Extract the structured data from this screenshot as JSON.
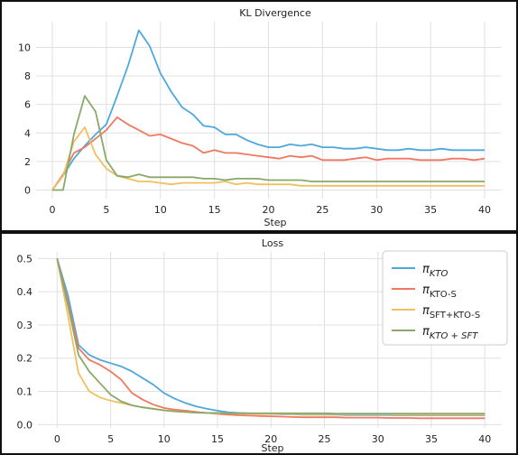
{
  "chart_data": [
    {
      "type": "line",
      "title": "KL Divergence",
      "xlabel": "Step",
      "ylabel": "",
      "xlim": [
        -1.5,
        41.5
      ],
      "ylim": [
        -0.6,
        11.8
      ],
      "xticks": [
        0,
        5,
        10,
        15,
        20,
        25,
        30,
        35,
        40
      ],
      "yticks": [
        0,
        2,
        4,
        6,
        8,
        10
      ],
      "grid": true,
      "x": [
        0,
        1,
        2,
        3,
        4,
        5,
        6,
        7,
        8,
        9,
        10,
        11,
        12,
        13,
        14,
        15,
        16,
        17,
        18,
        19,
        20,
        21,
        22,
        23,
        24,
        25,
        26,
        27,
        28,
        29,
        30,
        31,
        32,
        33,
        34,
        35,
        36,
        37,
        38,
        39,
        40
      ],
      "series": [
        {
          "color": "#4fa8dc",
          "values": [
            0,
            1.0,
            2.2,
            3.1,
            3.9,
            4.6,
            6.6,
            8.7,
            11.2,
            10.1,
            8.2,
            6.9,
            5.8,
            5.3,
            4.5,
            4.4,
            3.9,
            3.9,
            3.5,
            3.2,
            3.0,
            3.0,
            3.2,
            3.1,
            3.2,
            3.0,
            3.0,
            2.9,
            2.9,
            3.0,
            2.9,
            2.8,
            2.8,
            2.9,
            2.8,
            2.8,
            2.9,
            2.8,
            2.8,
            2.8,
            2.8
          ]
        },
        {
          "color": "#f07860",
          "values": [
            0,
            1.1,
            2.6,
            3.0,
            3.6,
            4.2,
            5.1,
            4.6,
            4.2,
            3.8,
            3.9,
            3.6,
            3.3,
            3.1,
            2.6,
            2.8,
            2.6,
            2.6,
            2.5,
            2.4,
            2.3,
            2.2,
            2.4,
            2.3,
            2.4,
            2.1,
            2.1,
            2.1,
            2.2,
            2.3,
            2.1,
            2.2,
            2.2,
            2.2,
            2.1,
            2.1,
            2.1,
            2.2,
            2.2,
            2.1,
            2.2
          ]
        },
        {
          "color": "#f0c060",
          "values": [
            0,
            1.0,
            3.4,
            4.4,
            2.5,
            1.5,
            1.0,
            0.8,
            0.6,
            0.6,
            0.5,
            0.4,
            0.5,
            0.5,
            0.5,
            0.5,
            0.6,
            0.4,
            0.5,
            0.4,
            0.4,
            0.4,
            0.4,
            0.3,
            0.3,
            0.3,
            0.3,
            0.3,
            0.3,
            0.3,
            0.3,
            0.3,
            0.3,
            0.3,
            0.3,
            0.3,
            0.3,
            0.3,
            0.3,
            0.3,
            0.3
          ]
        },
        {
          "color": "#8aa86a",
          "values": [
            0,
            0,
            3.9,
            6.6,
            5.5,
            2.1,
            1.0,
            0.9,
            1.1,
            0.9,
            0.9,
            0.9,
            0.9,
            0.9,
            0.8,
            0.8,
            0.7,
            0.8,
            0.8,
            0.8,
            0.7,
            0.7,
            0.7,
            0.7,
            0.6,
            0.6,
            0.6,
            0.6,
            0.6,
            0.6,
            0.6,
            0.6,
            0.6,
            0.6,
            0.6,
            0.6,
            0.6,
            0.6,
            0.6,
            0.6,
            0.6
          ]
        }
      ]
    },
    {
      "type": "line",
      "title": "Loss",
      "xlabel": "Step",
      "ylabel": "",
      "xlim": [
        -1.8,
        41.5
      ],
      "ylim": [
        -0.01,
        0.52
      ],
      "xticks": [
        0,
        5,
        10,
        15,
        20,
        25,
        30,
        35,
        40
      ],
      "yticks": [
        0.0,
        0.1,
        0.2,
        0.3,
        0.4,
        0.5
      ],
      "ytick_labels": [
        "0.0",
        "0.1",
        "0.2",
        "0.3",
        "0.4",
        "0.5"
      ],
      "grid": true,
      "legend_position": "top-right",
      "x": [
        0,
        1,
        2,
        3,
        4,
        5,
        6,
        7,
        8,
        9,
        10,
        11,
        12,
        13,
        14,
        15,
        16,
        17,
        18,
        19,
        20,
        21,
        22,
        23,
        24,
        25,
        26,
        27,
        28,
        29,
        30,
        31,
        32,
        33,
        34,
        35,
        36,
        37,
        38,
        39,
        40
      ],
      "series": [
        {
          "name": "π",
          "sub": "KTO",
          "sub_style": "italic",
          "color": "#4fa8dc",
          "values": [
            0.5,
            0.39,
            0.24,
            0.21,
            0.195,
            0.185,
            0.175,
            0.16,
            0.14,
            0.12,
            0.095,
            0.078,
            0.065,
            0.055,
            0.048,
            0.042,
            0.037,
            0.035,
            0.034,
            0.033,
            0.032,
            0.031,
            0.031,
            0.03,
            0.03,
            0.03,
            0.03,
            0.029,
            0.029,
            0.029,
            0.029,
            0.029,
            0.028,
            0.028,
            0.028,
            0.028,
            0.028,
            0.028,
            0.028,
            0.028,
            0.028
          ]
        },
        {
          "name": "π",
          "sub": "KTO-S",
          "sub_style": "normal",
          "color": "#f07860",
          "values": [
            0.5,
            0.37,
            0.23,
            0.195,
            0.18,
            0.16,
            0.135,
            0.095,
            0.075,
            0.06,
            0.05,
            0.045,
            0.042,
            0.038,
            0.035,
            0.032,
            0.03,
            0.028,
            0.027,
            0.026,
            0.025,
            0.024,
            0.023,
            0.022,
            0.022,
            0.022,
            0.022,
            0.021,
            0.021,
            0.021,
            0.021,
            0.02,
            0.02,
            0.02,
            0.019,
            0.019,
            0.019,
            0.019,
            0.019,
            0.019,
            0.019
          ]
        },
        {
          "name": "π",
          "sub": "SFT+KTO-S",
          "sub_style": "normal",
          "color": "#f0c060",
          "values": [
            0.5,
            0.33,
            0.155,
            0.1,
            0.082,
            0.072,
            0.065,
            0.058,
            0.052,
            0.048,
            0.043,
            0.04,
            0.038,
            0.036,
            0.035,
            0.034,
            0.034,
            0.033,
            0.033,
            0.032,
            0.032,
            0.032,
            0.032,
            0.031,
            0.031,
            0.031,
            0.031,
            0.031,
            0.031,
            0.031,
            0.031,
            0.031,
            0.03,
            0.03,
            0.03,
            0.03,
            0.03,
            0.03,
            0.03,
            0.03,
            0.03
          ]
        },
        {
          "name": "π",
          "sub": "KTO + SFT",
          "sub_style": "italic",
          "color": "#8aa86a",
          "values": [
            0.5,
            0.36,
            0.21,
            0.16,
            0.125,
            0.09,
            0.07,
            0.058,
            0.052,
            0.047,
            0.043,
            0.04,
            0.038,
            0.036,
            0.035,
            0.035,
            0.034,
            0.034,
            0.034,
            0.034,
            0.034,
            0.034,
            0.034,
            0.034,
            0.034,
            0.034,
            0.033,
            0.033,
            0.033,
            0.033,
            0.033,
            0.033,
            0.033,
            0.033,
            0.033,
            0.033,
            0.033,
            0.033,
            0.033,
            0.033,
            0.033
          ]
        }
      ]
    }
  ]
}
